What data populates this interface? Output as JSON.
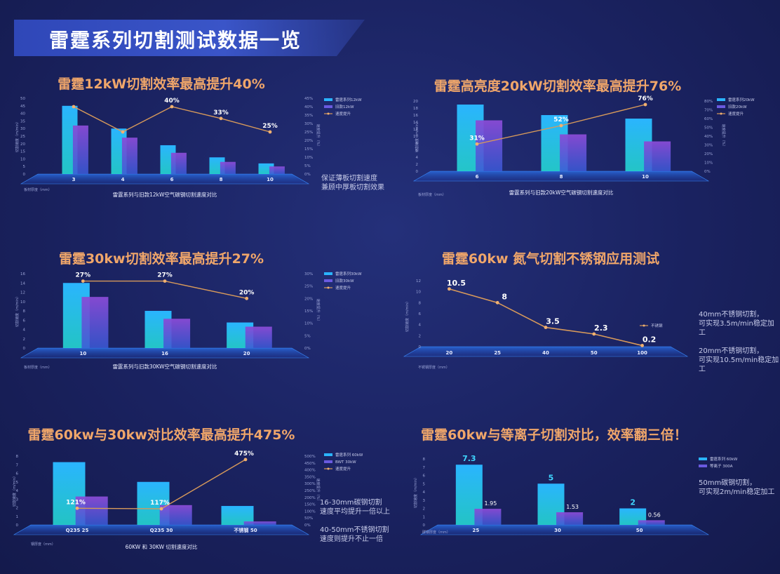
{
  "header": {
    "title": "雷霆系列切割测试数据一览"
  },
  "chart_data": [
    {
      "type": "bar",
      "title": "雷霆12kW切割效率最高提升40%",
      "categories": [
        "3",
        "4",
        "6",
        "8",
        "10"
      ],
      "series": [
        {
          "name": "雷霆系列12kW",
          "values": [
            45,
            30,
            19,
            11,
            7
          ]
        },
        {
          "name": "旧款12kW",
          "values": [
            32,
            24,
            14,
            8,
            5
          ]
        }
      ],
      "line": {
        "name": "速度提升",
        "values": [
          40,
          25,
          40,
          33,
          25
        ],
        "labels": [
          "",
          "",
          "40%",
          "33%",
          "25%"
        ]
      },
      "xlabel": "雷霆系列与旧款12kW空气碳钢切割速度对比",
      "xunit": "板材厚度（mm）",
      "ylabel": "切割速度（m/min）",
      "y2label": "速度提升（%）",
      "ylim": [
        0,
        50
      ],
      "yticks": [
        "0",
        "5",
        "10",
        "15",
        "20",
        "25",
        "30",
        "35",
        "40",
        "45",
        "50"
      ],
      "y2lim": [
        0,
        45
      ],
      "y2ticks": [
        "0%",
        "5%",
        "10%",
        "15%",
        "20%",
        "25%",
        "30%",
        "35%",
        "40%",
        "45%"
      ],
      "note": "保证薄板切割速度\n兼顾中厚板切割效果"
    },
    {
      "type": "bar",
      "title": "雷霆高亮度20kW切割效率最高提升76%",
      "categories": [
        "6",
        "8",
        "10"
      ],
      "series": [
        {
          "name": "雷霆系列20kW",
          "values": [
            19,
            16,
            15
          ]
        },
        {
          "name": "旧款20kW",
          "values": [
            14.5,
            10.5,
            8.5
          ]
        }
      ],
      "line": {
        "name": "速度提升",
        "values": [
          31,
          52,
          76
        ],
        "labels": [
          "31%",
          "52%",
          "76%"
        ]
      },
      "xlabel": "雷霆系列与旧款20kW空气碳钢切割速度对比",
      "xunit": "板材厚度（mm）",
      "ylabel": "切割速度（m/min）",
      "y2label": "速度提升（%）",
      "ylim": [
        0,
        20
      ],
      "yticks": [
        "0",
        "2",
        "4",
        "6",
        "8",
        "10",
        "12",
        "14",
        "16",
        "18",
        "20"
      ],
      "y2lim": [
        0,
        80
      ],
      "y2ticks": [
        "0%",
        "10%",
        "20%",
        "30%",
        "40%",
        "50%",
        "60%",
        "70%",
        "80%"
      ],
      "note": ""
    },
    {
      "type": "bar",
      "title": "雷霆30kw切割效率最高提升27%",
      "categories": [
        "10",
        "16",
        "20"
      ],
      "series": [
        {
          "name": "雷霆系列30kW",
          "values": [
            14,
            8,
            5.5
          ]
        },
        {
          "name": "旧款30kW",
          "values": [
            11,
            6.3,
            4.6
          ]
        }
      ],
      "line": {
        "name": "速度提升",
        "values": [
          27,
          27,
          20
        ],
        "labels": [
          "27%",
          "27%",
          "20%"
        ]
      },
      "xlabel": "雷霆系列与旧款30KW空气碳钢切割速度对比",
      "xunit": "板材厚度（mm）",
      "ylabel": "切割速度（m/min）",
      "y2label": "速度提升（%）",
      "ylim": [
        0,
        16
      ],
      "yticks": [
        "0",
        "2",
        "4",
        "6",
        "8",
        "10",
        "12",
        "14",
        "16"
      ],
      "y2lim": [
        0,
        30
      ],
      "y2ticks": [
        "0%",
        "5%",
        "10%",
        "15%",
        "20%",
        "25%",
        "30%"
      ],
      "note": ""
    },
    {
      "type": "line",
      "title": "雷霆60kw 氮气切割不锈钢应用测试",
      "categories": [
        "20",
        "25",
        "40",
        "50",
        "100"
      ],
      "series": [
        {
          "name": "不锈钢",
          "values": [
            10.5,
            8,
            3.5,
            2.3,
            0.2
          ],
          "labels": [
            "10.5",
            "8",
            "3.5",
            "2.3",
            "0.2"
          ]
        }
      ],
      "xunit": "不锈钢厚度（mm）",
      "ylabel": "切割速度（m/min）",
      "ylim": [
        0,
        12
      ],
      "yticks": [
        "0",
        "2",
        "4",
        "6",
        "8",
        "10",
        "12"
      ],
      "note": "40mm不锈钢切割，\n可实现3.5m/min稳定加工\n\n20mm不锈钢切割，\n可实现10.5m/min稳定加工"
    },
    {
      "type": "bar",
      "title": "雷霆60kw与30kw对比效率最高提升475%",
      "categories": [
        "Q235 25",
        "Q235 30",
        "不锈钢 50"
      ],
      "series": [
        {
          "name": "雷霆系列 60kW",
          "values": [
            7.3,
            5,
            2.2
          ]
        },
        {
          "name": "BWT 30kW",
          "values": [
            3.3,
            2.3,
            0.4
          ]
        }
      ],
      "line": {
        "name": "速度提升",
        "values": [
          121,
          117,
          475
        ],
        "labels": [
          "121%",
          "117%",
          "475%"
        ]
      },
      "xlabel": "60KW 和 30KW 切割速度对比",
      "xunit": "钢厚度（mm）",
      "ylabel": "切割速度（m/min）",
      "y2label": "速度提升（%）",
      "ylim": [
        0,
        8
      ],
      "yticks": [
        "0",
        "1",
        "2",
        "3",
        "4",
        "5",
        "6",
        "7",
        "8"
      ],
      "y2lim": [
        0,
        500
      ],
      "y2ticks": [
        "0%",
        "50%",
        "100%",
        "150%",
        "200%",
        "250%",
        "300%",
        "350%",
        "400%",
        "450%",
        "500%"
      ],
      "note": "16-30mm碳钢切割\n速度平均提升一倍以上\n\n40-50mm不锈钢切割\n速度则提升不止一倍"
    },
    {
      "type": "bar",
      "title": "雷霆60kw与等离子切割对比，效率翻三倍！",
      "categories": [
        "25",
        "30",
        "50"
      ],
      "series": [
        {
          "name": "雷霆系列 60kW",
          "values": [
            7.3,
            5,
            2
          ],
          "labels": [
            "7.3",
            "5",
            "2"
          ]
        },
        {
          "name": "等离子 300A",
          "values": [
            1.95,
            1.53,
            0.56
          ],
          "labels": [
            "1.95",
            "1.53",
            "0.56"
          ]
        }
      ],
      "xunit": "碳钢厚度（mm）",
      "ylabel": "切割速度（m/min）",
      "ylim": [
        0,
        8
      ],
      "yticks": [
        "0",
        "1",
        "2",
        "3",
        "4",
        "5",
        "6",
        "7",
        "8"
      ],
      "note": "50mm碳钢切割，\n可实现2m/min稳定加工"
    }
  ]
}
